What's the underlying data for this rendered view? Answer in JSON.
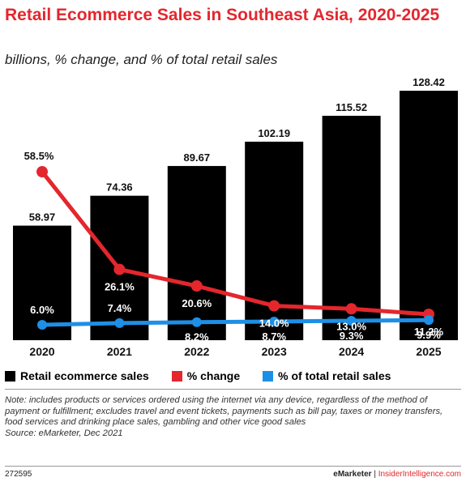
{
  "header": {
    "title": "Retail Ecommerce Sales in Southeast Asia, 2020-2025",
    "subtitle": "billions, % change, and % of total retail sales"
  },
  "chart_data": {
    "type": "bar",
    "categories": [
      "2020",
      "2021",
      "2022",
      "2023",
      "2024",
      "2025"
    ],
    "series": [
      {
        "name": "Retail ecommerce sales",
        "type": "bar",
        "color": "#000000",
        "values": [
          58.97,
          74.36,
          89.67,
          102.19,
          115.52,
          128.42
        ],
        "labels": [
          "58.97",
          "74.36",
          "89.67",
          "102.19",
          "115.52",
          "128.42"
        ]
      },
      {
        "name": "% change",
        "type": "line",
        "color": "#e4262d",
        "values": [
          58.5,
          26.1,
          20.6,
          14.0,
          13.0,
          11.2
        ],
        "labels": [
          "58.5%",
          "26.1%",
          "20.6%",
          "14.0%",
          "13.0%",
          "11.2%"
        ]
      },
      {
        "name": "% of total retail sales",
        "type": "line",
        "color": "#1e8fe6",
        "values": [
          6.0,
          7.4,
          8.2,
          8.7,
          9.3,
          9.9
        ],
        "labels": [
          "6.0%",
          "7.4%",
          "8.2%",
          "8.7%",
          "9.3%",
          "9.9%"
        ]
      }
    ],
    "grid": false,
    "legend_position": "bottom"
  },
  "legend": {
    "bars": "Retail ecommerce sales",
    "change": "% change",
    "share": "% of total retail sales"
  },
  "note": "Note: includes products or services ordered using the internet via any device, regardless of the method of payment or fulfillment; excludes travel and event tickets, payments such as bill pay, taxes or money transfers, food services and drinking place sales, gambling and other vice good sales",
  "source": "Source: eMarketer, Dec 2021",
  "footer": {
    "id": "272595",
    "brand": "eMarketer",
    "separator": "|",
    "link": "InsiderIntelligence.com"
  },
  "colors": {
    "accent": "#e4262d",
    "bar": "#000000",
    "share": "#1e8fe6"
  }
}
